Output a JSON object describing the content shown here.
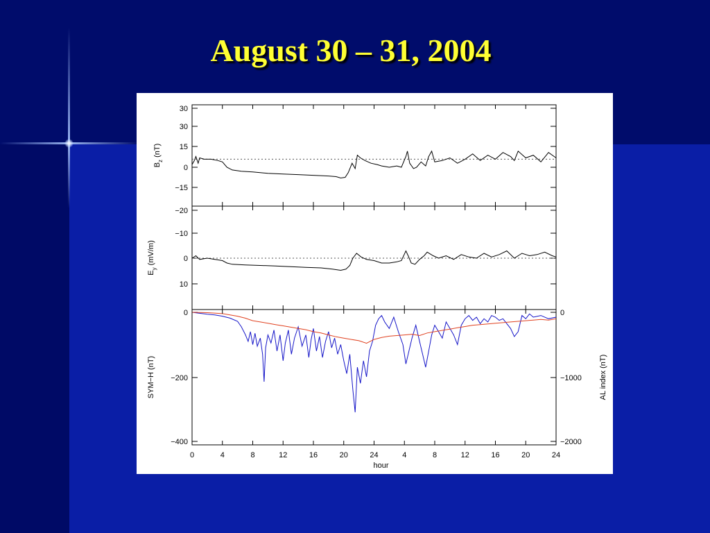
{
  "slide": {
    "title": "August 30 – 31, 2004"
  },
  "colors": {
    "background": "#000a66",
    "title": "#ffff33",
    "sym_h": "#1414c8",
    "al_index": "#e0401e"
  },
  "chart_data": [
    {
      "type": "line",
      "panel": "top",
      "ylabel_main": "B",
      "ylabel_sub": "z",
      "ylabel_unit": "(nT)",
      "ytick_labels": [
        "30",
        "30",
        "15",
        "0",
        "−15"
      ],
      "reference_line": 6,
      "hour_range": [
        0,
        48
      ],
      "series": [
        {
          "color": "#000000",
          "points": [
            [
              0,
              2
            ],
            [
              0.3,
              5
            ],
            [
              0.5,
              8
            ],
            [
              0.8,
              3
            ],
            [
              1.0,
              7
            ],
            [
              1.6,
              6
            ],
            [
              2.5,
              6
            ],
            [
              3.4,
              5
            ],
            [
              4.0,
              4
            ],
            [
              4.6,
              0
            ],
            [
              5.3,
              -2
            ],
            [
              6.5,
              -3
            ],
            [
              8,
              -3.5
            ],
            [
              10,
              -4.5
            ],
            [
              12,
              -5
            ],
            [
              14,
              -5.5
            ],
            [
              16,
              -6
            ],
            [
              18,
              -6.5
            ],
            [
              19,
              -7
            ],
            [
              19.6,
              -8
            ],
            [
              20.2,
              -7.5
            ],
            [
              20.6,
              -4
            ],
            [
              21.1,
              3
            ],
            [
              21.5,
              -1
            ],
            [
              21.8,
              9
            ],
            [
              22.2,
              7
            ],
            [
              22.8,
              5
            ],
            [
              23.6,
              3
            ],
            [
              24.4,
              2
            ],
            [
              25,
              1
            ],
            [
              26,
              0
            ],
            [
              27,
              1
            ],
            [
              27.6,
              0
            ],
            [
              28.2,
              8
            ],
            [
              28.4,
              12
            ],
            [
              28.7,
              3
            ],
            [
              29.2,
              -1
            ],
            [
              29.6,
              0
            ],
            [
              30.2,
              4
            ],
            [
              30.8,
              1
            ],
            [
              31.2,
              8
            ],
            [
              31.6,
              12
            ],
            [
              32,
              4
            ],
            [
              33,
              5
            ],
            [
              34,
              7
            ],
            [
              35,
              3
            ],
            [
              36,
              6
            ],
            [
              37,
              10
            ],
            [
              38,
              5
            ],
            [
              39,
              9
            ],
            [
              40,
              6
            ],
            [
              41,
              11
            ],
            [
              42,
              8
            ],
            [
              42.5,
              5
            ],
            [
              43,
              12
            ],
            [
              44,
              7
            ],
            [
              45,
              9
            ],
            [
              46,
              4
            ],
            [
              47,
              11
            ],
            [
              48,
              7
            ]
          ]
        }
      ]
    },
    {
      "type": "line",
      "panel": "middle",
      "ylabel_main": "E",
      "ylabel_sub": "y",
      "ylabel_unit": "(mV/m)",
      "ytick_labels": [
        "−20",
        "−10",
        "0",
        "10"
      ],
      "reference_line": 0,
      "hour_range": [
        0,
        48
      ],
      "series": [
        {
          "color": "#000000",
          "points": [
            [
              0,
              0
            ],
            [
              0.5,
              -1
            ],
            [
              1,
              0.5
            ],
            [
              2,
              0
            ],
            [
              3,
              0.5
            ],
            [
              4,
              1
            ],
            [
              4.6,
              2
            ],
            [
              5.3,
              2.5
            ],
            [
              7,
              2.8
            ],
            [
              9,
              3
            ],
            [
              11,
              3.2
            ],
            [
              13,
              3.5
            ],
            [
              15,
              3.8
            ],
            [
              17,
              4
            ],
            [
              18.5,
              4.5
            ],
            [
              19.6,
              5
            ],
            [
              20.3,
              4.5
            ],
            [
              20.8,
              3
            ],
            [
              21.2,
              0
            ],
            [
              21.7,
              -2
            ],
            [
              22.3,
              -0.5
            ],
            [
              23,
              0.5
            ],
            [
              24,
              1
            ],
            [
              25,
              2
            ],
            [
              26,
              2
            ],
            [
              27,
              1.5
            ],
            [
              27.6,
              1
            ],
            [
              28.2,
              -3
            ],
            [
              28.5,
              -1
            ],
            [
              28.9,
              2
            ],
            [
              29.4,
              2.5
            ],
            [
              30,
              0.5
            ],
            [
              30.6,
              -1
            ],
            [
              31,
              -2.5
            ],
            [
              31.8,
              -1
            ],
            [
              32.5,
              0
            ],
            [
              33.5,
              -1
            ],
            [
              34.5,
              0.5
            ],
            [
              35.5,
              -1.5
            ],
            [
              36.5,
              -0.5
            ],
            [
              37.5,
              0
            ],
            [
              38.5,
              -2
            ],
            [
              39.5,
              -0.5
            ],
            [
              40.5,
              -1.5
            ],
            [
              41.5,
              -3
            ],
            [
              42.5,
              0
            ],
            [
              43.5,
              -2
            ],
            [
              44.5,
              -1
            ],
            [
              45.5,
              -1.5
            ],
            [
              46.5,
              -2.5
            ],
            [
              47.5,
              -1
            ],
            [
              48,
              -0.5
            ]
          ]
        }
      ]
    },
    {
      "type": "line",
      "panel": "bottom",
      "ylabel_left": "SYM−H (nT)",
      "ylabel_right": "AL index (nT)",
      "ytick_labels_left": [
        "0",
        "−200",
        "−400"
      ],
      "ytick_labels_right": [
        "0",
        "−1000",
        "−2000"
      ],
      "xlabel": "hour",
      "xtick_labels": [
        "0",
        "4",
        "8",
        "12",
        "16",
        "20",
        "24",
        "4",
        "8",
        "12",
        "16",
        "20",
        "24"
      ],
      "hour_range": [
        0,
        48
      ],
      "series": [
        {
          "color": "#1414c8",
          "axis": "left",
          "points": [
            [
              0,
              0
            ],
            [
              1,
              -3
            ],
            [
              2,
              -6
            ],
            [
              3,
              -8
            ],
            [
              4,
              -12
            ],
            [
              5,
              -18
            ],
            [
              6,
              -28
            ],
            [
              6.5,
              -45
            ],
            [
              7,
              -68
            ],
            [
              7.4,
              -90
            ],
            [
              7.7,
              -60
            ],
            [
              8,
              -100
            ],
            [
              8.3,
              -65
            ],
            [
              8.6,
              -105
            ],
            [
              9,
              -80
            ],
            [
              9.3,
              -130
            ],
            [
              9.5,
              -215
            ],
            [
              9.7,
              -110
            ],
            [
              10,
              -70
            ],
            [
              10.4,
              -95
            ],
            [
              10.8,
              -55
            ],
            [
              11.2,
              -120
            ],
            [
              11.6,
              -70
            ],
            [
              12,
              -150
            ],
            [
              12.3,
              -95
            ],
            [
              12.7,
              -55
            ],
            [
              13.1,
              -130
            ],
            [
              13.5,
              -80
            ],
            [
              14,
              -45
            ],
            [
              14.5,
              -105
            ],
            [
              15,
              -70
            ],
            [
              15.4,
              -140
            ],
            [
              15.7,
              -85
            ],
            [
              16,
              -50
            ],
            [
              16.4,
              -120
            ],
            [
              16.8,
              -75
            ],
            [
              17.2,
              -140
            ],
            [
              17.6,
              -90
            ],
            [
              18,
              -60
            ],
            [
              18.4,
              -110
            ],
            [
              18.8,
              -80
            ],
            [
              19.2,
              -130
            ],
            [
              19.6,
              -100
            ],
            [
              20,
              -150
            ],
            [
              20.4,
              -190
            ],
            [
              20.8,
              -130
            ],
            [
              21.2,
              -240
            ],
            [
              21.5,
              -310
            ],
            [
              21.8,
              -170
            ],
            [
              22.2,
              -220
            ],
            [
              22.6,
              -150
            ],
            [
              23,
              -200
            ],
            [
              23.4,
              -120
            ],
            [
              23.8,
              -90
            ],
            [
              24.2,
              -40
            ],
            [
              24.6,
              -20
            ],
            [
              25,
              -10
            ],
            [
              25.4,
              -30
            ],
            [
              26,
              -50
            ],
            [
              26.6,
              -15
            ],
            [
              27.2,
              -60
            ],
            [
              27.8,
              -100
            ],
            [
              28.2,
              -160
            ],
            [
              28.6,
              -120
            ],
            [
              29,
              -80
            ],
            [
              29.5,
              -40
            ],
            [
              30,
              -90
            ],
            [
              30.4,
              -130
            ],
            [
              30.8,
              -170
            ],
            [
              31.2,
              -120
            ],
            [
              31.6,
              -70
            ],
            [
              32,
              -40
            ],
            [
              32.5,
              -60
            ],
            [
              33,
              -80
            ],
            [
              33.5,
              -30
            ],
            [
              34,
              -50
            ],
            [
              34.5,
              -70
            ],
            [
              35,
              -100
            ],
            [
              35.5,
              -40
            ],
            [
              36,
              -20
            ],
            [
              36.5,
              -10
            ],
            [
              37,
              -25
            ],
            [
              37.5,
              -15
            ],
            [
              38,
              -35
            ],
            [
              38.5,
              -20
            ],
            [
              39,
              -30
            ],
            [
              39.5,
              -10
            ],
            [
              40,
              -15
            ],
            [
              40.5,
              -25
            ],
            [
              41,
              -20
            ],
            [
              41.5,
              -35
            ],
            [
              42,
              -50
            ],
            [
              42.5,
              -75
            ],
            [
              43,
              -60
            ],
            [
              43.5,
              -10
            ],
            [
              44,
              -20
            ],
            [
              44.5,
              -5
            ],
            [
              45,
              -15
            ],
            [
              46,
              -10
            ],
            [
              47,
              -20
            ],
            [
              48,
              -15
            ]
          ]
        },
        {
          "color": "#e0401e",
          "axis": "right",
          "points": [
            [
              0,
              0
            ],
            [
              2,
              -5
            ],
            [
              4,
              -20
            ],
            [
              6,
              -60
            ],
            [
              7,
              -90
            ],
            [
              8,
              -130
            ],
            [
              9,
              -150
            ],
            [
              10,
              -170
            ],
            [
              11,
              -190
            ],
            [
              12,
              -210
            ],
            [
              13,
              -230
            ],
            [
              14,
              -250
            ],
            [
              15,
              -270
            ],
            [
              16,
              -300
            ],
            [
              17,
              -320
            ],
            [
              18,
              -350
            ],
            [
              19,
              -380
            ],
            [
              20,
              -400
            ],
            [
              21,
              -420
            ],
            [
              22,
              -440
            ],
            [
              23,
              -480
            ],
            [
              24,
              -420
            ],
            [
              25,
              -390
            ],
            [
              26,
              -370
            ],
            [
              27,
              -360
            ],
            [
              28,
              -350
            ],
            [
              29,
              -340
            ],
            [
              30,
              -360
            ],
            [
              31,
              -320
            ],
            [
              32,
              -300
            ],
            [
              33,
              -280
            ],
            [
              34,
              -260
            ],
            [
              35,
              -240
            ],
            [
              36,
              -220
            ],
            [
              37,
              -200
            ],
            [
              38,
              -190
            ],
            [
              39,
              -180
            ],
            [
              40,
              -170
            ],
            [
              41,
              -160
            ],
            [
              42,
              -150
            ],
            [
              43,
              -140
            ],
            [
              44,
              -130
            ],
            [
              45,
              -120
            ],
            [
              46,
              -110
            ],
            [
              47,
              -120
            ],
            [
              48,
              -100
            ]
          ]
        }
      ]
    }
  ]
}
